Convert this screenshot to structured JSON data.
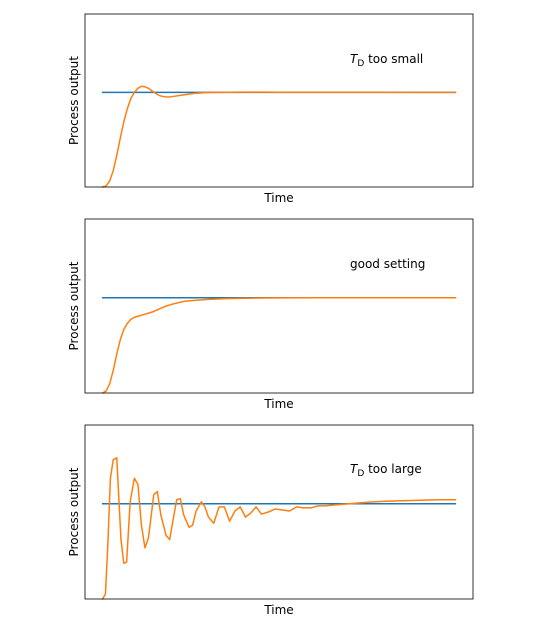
{
  "chart_data": [
    {
      "type": "line",
      "title": "",
      "xlabel": "Time",
      "ylabel": "Process output",
      "annotation": {
        "prefix": "T",
        "subscript": "D",
        "suffix": " too small"
      },
      "xlim": [
        -0.5,
        10.5
      ],
      "ylim": [
        0,
        1.7
      ],
      "grid": false,
      "legend": "none",
      "series": [
        {
          "color": "#1f77b4",
          "x": [
            0,
            10
          ],
          "y": [
            0.93,
            0.93
          ]
        },
        {
          "color": "#ff7f0e",
          "x": [
            0,
            0.1,
            0.2,
            0.3,
            0.4,
            0.5,
            0.6,
            0.7,
            0.8,
            0.9,
            1.0,
            1.1,
            1.2,
            1.3,
            1.4,
            1.5,
            1.6,
            1.7,
            1.8,
            1.9,
            2.0,
            2.2,
            2.4,
            2.6,
            2.8,
            3.0,
            3.3,
            3.6,
            4.0,
            4.5,
            5.0,
            6.0,
            7.0,
            8.0,
            9.0,
            10.0
          ],
          "y": [
            0.0,
            0.01,
            0.06,
            0.16,
            0.31,
            0.48,
            0.64,
            0.77,
            0.87,
            0.93,
            0.97,
            0.99,
            0.985,
            0.97,
            0.945,
            0.92,
            0.9,
            0.89,
            0.885,
            0.885,
            0.89,
            0.9,
            0.91,
            0.92,
            0.925,
            0.928,
            0.93,
            0.931,
            0.932,
            0.932,
            0.931,
            0.931,
            0.931,
            0.931,
            0.93,
            0.93
          ]
        }
      ]
    },
    {
      "type": "line",
      "title": "",
      "xlabel": "Time",
      "ylabel": "Process output",
      "annotation": {
        "prefix": "good setting",
        "subscript": "",
        "suffix": ""
      },
      "xlim": [
        -0.5,
        10.5
      ],
      "ylim": [
        0,
        1.7
      ],
      "grid": false,
      "legend": "none",
      "series": [
        {
          "color": "#1f77b4",
          "x": [
            0,
            10
          ],
          "y": [
            0.93,
            0.93
          ]
        },
        {
          "color": "#ff7f0e",
          "x": [
            0,
            0.1,
            0.2,
            0.3,
            0.4,
            0.5,
            0.6,
            0.7,
            0.8,
            0.9,
            1.0,
            1.2,
            1.4,
            1.6,
            1.8,
            2.0,
            2.3,
            2.6,
            3.0,
            3.5,
            4.0,
            4.5,
            5.0,
            6.0,
            7.0,
            8.0,
            9.0,
            10.0
          ],
          "y": [
            0.0,
            0.02,
            0.09,
            0.22,
            0.38,
            0.52,
            0.62,
            0.68,
            0.72,
            0.74,
            0.75,
            0.77,
            0.79,
            0.82,
            0.85,
            0.87,
            0.895,
            0.905,
            0.915,
            0.922,
            0.926,
            0.928,
            0.929,
            0.93,
            0.93,
            0.93,
            0.93,
            0.93
          ]
        }
      ]
    },
    {
      "type": "line",
      "title": "",
      "xlabel": "Time",
      "ylabel": "Process output",
      "annotation": {
        "prefix": "T",
        "subscript": "D",
        "suffix": " too large"
      },
      "xlim": [
        -0.5,
        10.5
      ],
      "ylim": [
        0,
        1.7
      ],
      "grid": false,
      "legend": "none",
      "series": [
        {
          "color": "#1f77b4",
          "x": [
            0,
            10
          ],
          "y": [
            0.93,
            0.93
          ]
        },
        {
          "color": "#ff7f0e",
          "x": [
            0,
            0.08,
            0.15,
            0.22,
            0.3,
            0.4,
            0.52,
            0.6,
            0.68,
            0.78,
            0.9,
            1.0,
            1.1,
            1.2,
            1.3,
            1.45,
            1.55,
            1.65,
            1.8,
            1.9,
            2.0,
            2.1,
            2.2,
            2.3,
            2.45,
            2.55,
            2.65,
            2.8,
            2.9,
            3.0,
            3.15,
            3.3,
            3.45,
            3.6,
            3.75,
            3.9,
            4.05,
            4.2,
            4.35,
            4.5,
            4.7,
            4.9,
            5.1,
            5.3,
            5.5,
            5.7,
            5.9,
            6.1,
            6.3,
            6.6,
            7.0,
            7.5,
            8.0,
            8.5,
            9.0,
            9.5,
            10.0
          ],
          "y": [
            0.0,
            0.05,
            0.55,
            1.18,
            1.36,
            1.38,
            0.58,
            0.35,
            0.36,
            0.95,
            1.18,
            1.12,
            0.72,
            0.5,
            0.6,
            1.02,
            1.05,
            0.82,
            0.62,
            0.58,
            0.78,
            0.97,
            0.98,
            0.82,
            0.7,
            0.72,
            0.86,
            0.95,
            0.9,
            0.8,
            0.74,
            0.9,
            0.9,
            0.76,
            0.86,
            0.9,
            0.8,
            0.84,
            0.9,
            0.83,
            0.85,
            0.88,
            0.87,
            0.86,
            0.9,
            0.89,
            0.89,
            0.91,
            0.91,
            0.92,
            0.93,
            0.945,
            0.955,
            0.96,
            0.965,
            0.97,
            0.97
          ]
        }
      ]
    }
  ]
}
